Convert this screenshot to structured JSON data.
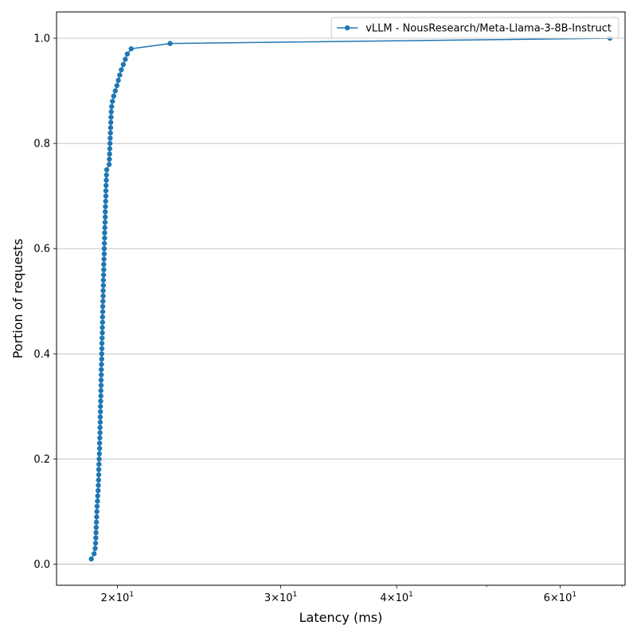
{
  "chart_data": {
    "type": "line",
    "xlabel": "Latency (ms)",
    "ylabel": "Portion of requests",
    "xscale": "log",
    "xlim": [
      17.2,
      70.5
    ],
    "ylim": [
      -0.04,
      1.05
    ],
    "grid": "horizontal",
    "legend_position": "top-right",
    "x_ticks_major": [
      {
        "value": 20,
        "mantissa": "2",
        "exponent": "1"
      },
      {
        "value": 30,
        "mantissa": "3",
        "exponent": "1"
      },
      {
        "value": 40,
        "mantissa": "4",
        "exponent": "1"
      },
      {
        "value": 60,
        "mantissa": "6",
        "exponent": "1"
      }
    ],
    "x_ticks_minor": [
      50,
      70
    ],
    "x_tick_base": "10",
    "y_ticks": [
      0.0,
      0.2,
      0.4,
      0.6,
      0.8,
      1.0
    ],
    "y_tick_labels": [
      "0.0",
      "0.2",
      "0.4",
      "0.6",
      "0.8",
      "1.0"
    ],
    "series": [
      {
        "name": "vLLM - NousResearch/Meta-Llama-3-8B-Instruct",
        "color": "#1f77b4",
        "marker": "circle",
        "x": [
          18.75,
          18.88,
          18.93,
          18.95,
          18.96,
          18.97,
          18.98,
          18.99,
          19.0,
          19.01,
          19.02,
          19.04,
          19.05,
          19.07,
          19.08,
          19.09,
          19.1,
          19.1,
          19.11,
          19.12,
          19.13,
          19.14,
          19.14,
          19.15,
          19.16,
          19.16,
          19.17,
          19.17,
          19.18,
          19.18,
          19.19,
          19.2,
          19.2,
          19.21,
          19.21,
          19.22,
          19.22,
          19.23,
          19.24,
          19.24,
          19.25,
          19.25,
          19.26,
          19.27,
          19.27,
          19.28,
          19.28,
          19.29,
          19.29,
          19.3,
          19.31,
          19.31,
          19.32,
          19.32,
          19.33,
          19.34,
          19.34,
          19.35,
          19.36,
          19.36,
          19.37,
          19.38,
          19.38,
          19.39,
          19.4,
          19.41,
          19.41,
          19.42,
          19.43,
          19.44,
          19.44,
          19.45,
          19.46,
          19.47,
          19.48,
          19.6,
          19.61,
          19.62,
          19.63,
          19.64,
          19.65,
          19.66,
          19.67,
          19.68,
          19.69,
          19.7,
          19.72,
          19.76,
          19.82,
          19.9,
          19.98,
          20.05,
          20.12,
          20.2,
          20.3,
          20.4,
          20.5,
          20.7,
          22.8,
          67.9
        ],
        "y": [
          0.01,
          0.02,
          0.03,
          0.04,
          0.05,
          0.06,
          0.07,
          0.08,
          0.09,
          0.1,
          0.11,
          0.12,
          0.13,
          0.14,
          0.15,
          0.16,
          0.17,
          0.18,
          0.19,
          0.2,
          0.21,
          0.22,
          0.23,
          0.24,
          0.25,
          0.26,
          0.27,
          0.28,
          0.29,
          0.3,
          0.31,
          0.32,
          0.33,
          0.34,
          0.35,
          0.36,
          0.37,
          0.38,
          0.39,
          0.4,
          0.41,
          0.42,
          0.43,
          0.44,
          0.45,
          0.46,
          0.47,
          0.48,
          0.49,
          0.5,
          0.51,
          0.52,
          0.53,
          0.54,
          0.55,
          0.56,
          0.57,
          0.58,
          0.59,
          0.6,
          0.61,
          0.62,
          0.63,
          0.64,
          0.65,
          0.66,
          0.67,
          0.68,
          0.69,
          0.7,
          0.71,
          0.72,
          0.73,
          0.74,
          0.75,
          0.76,
          0.77,
          0.78,
          0.79,
          0.8,
          0.81,
          0.82,
          0.83,
          0.84,
          0.85,
          0.86,
          0.87,
          0.88,
          0.89,
          0.9,
          0.91,
          0.92,
          0.93,
          0.94,
          0.95,
          0.96,
          0.97,
          0.98,
          0.99,
          1.0
        ]
      }
    ]
  }
}
